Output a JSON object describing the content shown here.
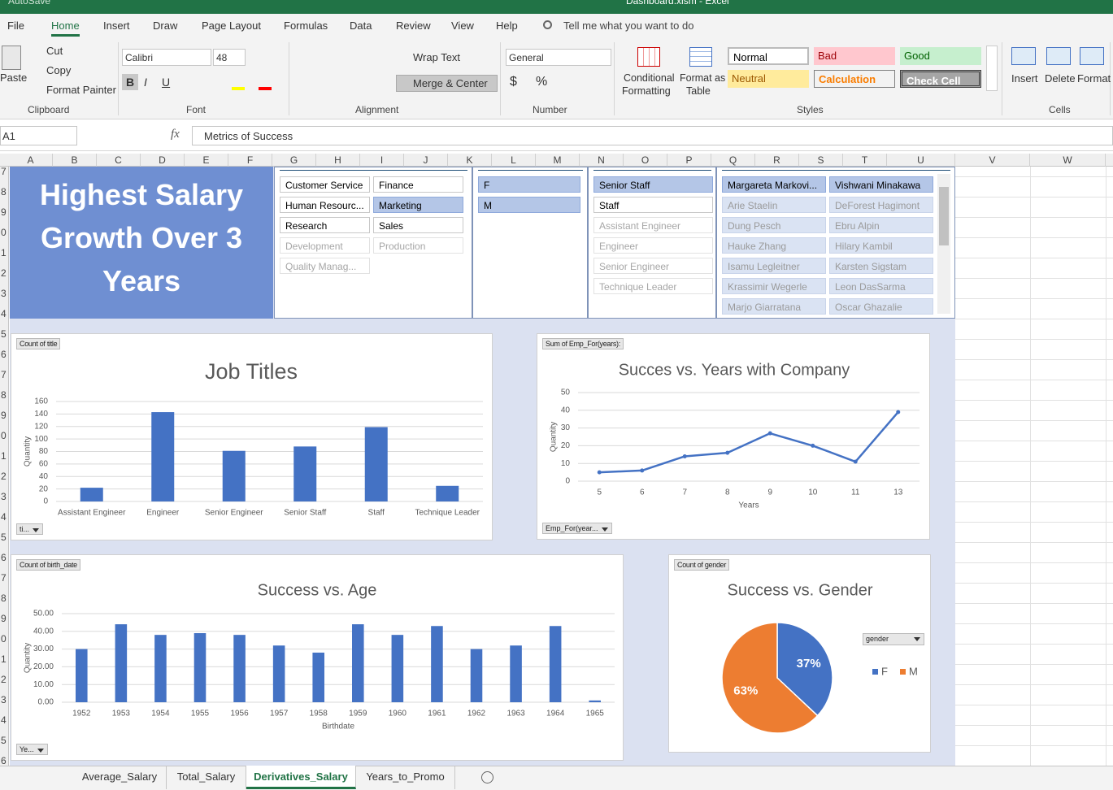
{
  "window": {
    "autosave": "AutoSave",
    "title": "Dashboard.xlsm - Excel"
  },
  "ribbon": {
    "tabs": [
      "File",
      "Home",
      "Insert",
      "Draw",
      "Page Layout",
      "Formulas",
      "Data",
      "Review",
      "View",
      "Help"
    ],
    "search": "Tell me what you want to do",
    "clipboard": {
      "paste": "Paste",
      "cut": "Cut",
      "copy": "Copy",
      "format_painter": "Format Painter",
      "label": "Clipboard"
    },
    "font": {
      "name": "Calibri",
      "size": 48,
      "buttons": [
        "B",
        "I",
        "U"
      ],
      "label": "Font"
    },
    "alignment": {
      "wrap": "Wrap Text",
      "merge": "Merge & Center",
      "label": "Alignment"
    },
    "number": {
      "format": "General",
      "symbols": [
        "$",
        "%"
      ],
      "label": "Number"
    },
    "styles": {
      "conditional": [
        "Conditional",
        "Formatting"
      ],
      "format_table": [
        "Format as",
        "Table"
      ],
      "cell_styles": [
        "Normal",
        "Bad",
        "Good",
        "Neutral",
        "Calculation",
        "Check Cell"
      ],
      "label": "Styles"
    },
    "cells": {
      "insert": "Insert",
      "delete": "Delete",
      "format": "Format",
      "label": "Cells"
    }
  },
  "formula_bar": {
    "name_box": "A1",
    "fx": "fx",
    "formula": "Metrics of Success"
  },
  "columns": [
    "A",
    "B",
    "C",
    "D",
    "E",
    "F",
    "G",
    "H",
    "I",
    "J",
    "K",
    "L",
    "M",
    "N",
    "O",
    "P",
    "Q",
    "R",
    "S",
    "T",
    "U",
    "V",
    "W"
  ],
  "rows": [
    "7",
    "8",
    "9",
    "0",
    "1",
    "2",
    "3",
    "4",
    "5",
    "6",
    "7",
    "8",
    "9",
    "0",
    "1",
    "2",
    "3",
    "4",
    "5",
    "6",
    "7",
    "8",
    "9",
    "0",
    "1",
    "2",
    "3",
    "4",
    "5",
    "6"
  ],
  "banner": "Highest Salary Growth Over 3 Years",
  "slicers": [
    {
      "items": [
        {
          "label": "Customer Service",
          "state": "unselected"
        },
        {
          "label": "Finance",
          "state": "unselected"
        },
        {
          "label": "Human Resourc...",
          "state": "unselected"
        },
        {
          "label": "Marketing",
          "state": "selected"
        },
        {
          "label": "Research",
          "state": "unselected"
        },
        {
          "label": "Sales",
          "state": "unselected"
        },
        {
          "label": "Development",
          "state": "nodata"
        },
        {
          "label": "Production",
          "state": "nodata"
        },
        {
          "label": "Quality Manag...",
          "state": "nodata"
        }
      ]
    },
    {
      "items": [
        {
          "label": "F",
          "state": "selected"
        },
        {
          "label": "M",
          "state": "selected"
        }
      ]
    },
    {
      "items": [
        {
          "label": "Senior Staff",
          "state": "selected"
        },
        {
          "label": "Staff",
          "state": "unselected"
        },
        {
          "label": "Assistant Engineer",
          "state": "nodata"
        },
        {
          "label": "Engineer",
          "state": "nodata"
        },
        {
          "label": "Senior Engineer",
          "state": "nodata"
        },
        {
          "label": "Technique Leader",
          "state": "nodata"
        }
      ]
    },
    {
      "items": [
        {
          "label": "Margareta Markovi...",
          "state": "selected"
        },
        {
          "label": "Vishwani Minakawa",
          "state": "selected"
        },
        {
          "label": "Arie Staelin",
          "state": "selected-nodata"
        },
        {
          "label": "DeForest Hagimont",
          "state": "selected-nodata"
        },
        {
          "label": "Dung Pesch",
          "state": "selected-nodata"
        },
        {
          "label": "Ebru Alpin",
          "state": "selected-nodata"
        },
        {
          "label": "Hauke Zhang",
          "state": "selected-nodata"
        },
        {
          "label": "Hilary Kambil",
          "state": "selected-nodata"
        },
        {
          "label": "Isamu Legleitner",
          "state": "selected-nodata"
        },
        {
          "label": "Karsten Sigstam",
          "state": "selected-nodata"
        },
        {
          "label": "Krassimir Wegerle",
          "state": "selected-nodata"
        },
        {
          "label": "Leon DasSarma",
          "state": "selected-nodata"
        },
        {
          "label": "Marjo Giarratana",
          "state": "selected-nodata"
        },
        {
          "label": "Oscar Ghazalie",
          "state": "selected-nodata"
        }
      ]
    }
  ],
  "chart_data": [
    {
      "type": "bar",
      "title": "Job Titles",
      "pivot_field": "Count of title",
      "filter_button": "ti...",
      "y_title": "Quantity",
      "categories": [
        "Assistant Engineer",
        "Engineer",
        "Senior Engineer",
        "Senior Staff",
        "Staff",
        "Technique Leader"
      ],
      "values": [
        22,
        143,
        81,
        88,
        119,
        25
      ],
      "color": "#4472c4",
      "ylim": [
        0,
        160
      ],
      "yticks": [
        0,
        20,
        40,
        60,
        80,
        100,
        120,
        140,
        160
      ],
      "grid": true
    },
    {
      "type": "line",
      "title": "Succes vs. Years with Company",
      "pivot_field": "Sum of Emp_For(years):",
      "filter_button": "Emp_For(year...",
      "x_title": "Years",
      "y_title": "Quantity",
      "categories": [
        "5",
        "6",
        "7",
        "8",
        "9",
        "10",
        "11",
        "13"
      ],
      "values": [
        5,
        6,
        14,
        16,
        27,
        20,
        11,
        39
      ],
      "color": "#4472c4",
      "ylim": [
        0,
        50
      ],
      "yticks": [
        0,
        10,
        20,
        30,
        40,
        50
      ],
      "grid": true
    },
    {
      "type": "bar",
      "title": "Success vs. Age",
      "pivot_field": "Count of birth_date",
      "filter_button": "Ye...",
      "x_title": "Birthdate",
      "y_title": "Quantity",
      "categories": [
        "1952",
        "1953",
        "1954",
        "1955",
        "1956",
        "1957",
        "1958",
        "1959",
        "1960",
        "1961",
        "1962",
        "1963",
        "1964",
        "1965"
      ],
      "values": [
        30,
        44,
        38,
        39,
        38,
        32,
        28,
        44,
        38,
        43,
        30,
        32,
        43,
        1
      ],
      "color": "#4472c4",
      "ylim": [
        0,
        50
      ],
      "yticks": [
        {
          "value": 0,
          "label": "0.00"
        },
        {
          "value": 10,
          "label": "10.00"
        },
        {
          "value": 20,
          "label": "20.00"
        },
        {
          "value": 30,
          "label": "30.00"
        },
        {
          "value": 40,
          "label": "40.00"
        },
        {
          "value": 50,
          "label": "50.00"
        }
      ],
      "grid": true
    },
    {
      "type": "pie",
      "title": "Success vs. Gender",
      "pivot_field": "Count of gender",
      "filter_button": "gender",
      "categories": [
        "F",
        "M"
      ],
      "values": [
        37,
        63
      ],
      "value_labels": [
        "37%",
        "63%"
      ],
      "colors": [
        "#4472c4",
        "#ed7d31"
      ],
      "legend": "right"
    }
  ],
  "sheet_tabs": [
    "Average_Salary",
    "Total_Salary",
    "Derivatives_Salary",
    "Years_to_Promo"
  ]
}
